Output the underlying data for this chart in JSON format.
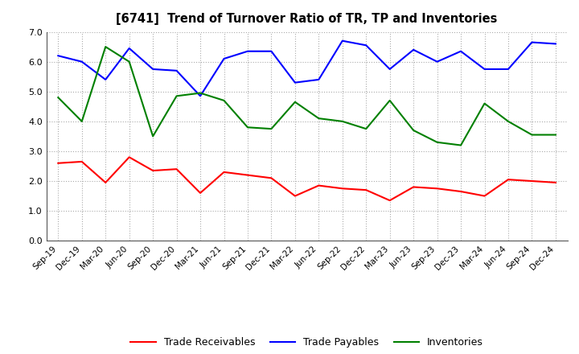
{
  "title": "[6741]  Trend of Turnover Ratio of TR, TP and Inventories",
  "x_labels": [
    "Sep-19",
    "Dec-19",
    "Mar-20",
    "Jun-20",
    "Sep-20",
    "Dec-20",
    "Mar-21",
    "Jun-21",
    "Sep-21",
    "Dec-21",
    "Mar-22",
    "Jun-22",
    "Sep-22",
    "Dec-22",
    "Mar-23",
    "Jun-23",
    "Sep-23",
    "Dec-23",
    "Mar-24",
    "Jun-24",
    "Sep-24",
    "Dec-24"
  ],
  "trade_receivables": [
    2.6,
    2.65,
    1.95,
    2.8,
    2.35,
    2.4,
    1.6,
    2.3,
    2.2,
    2.1,
    1.5,
    1.85,
    1.75,
    1.7,
    1.35,
    1.8,
    1.75,
    1.65,
    1.5,
    2.05,
    2.0,
    1.95
  ],
  "trade_payables": [
    6.2,
    6.0,
    5.4,
    6.45,
    5.75,
    5.7,
    4.85,
    6.1,
    6.35,
    6.35,
    5.3,
    5.4,
    6.7,
    6.55,
    5.75,
    6.4,
    6.0,
    6.35,
    5.75,
    5.75,
    6.65,
    6.6
  ],
  "inventories": [
    4.8,
    4.0,
    6.5,
    6.0,
    3.5,
    4.85,
    4.95,
    4.7,
    3.8,
    3.75,
    4.65,
    4.1,
    4.0,
    3.75,
    4.7,
    3.7,
    3.3,
    3.2,
    4.6,
    4.0,
    3.55,
    3.55
  ],
  "ylim": [
    0.0,
    7.0
  ],
  "yticks": [
    0.0,
    1.0,
    2.0,
    3.0,
    4.0,
    5.0,
    6.0,
    7.0
  ],
  "tr_color": "#ff0000",
  "tp_color": "#0000ff",
  "inv_color": "#008000",
  "background_color": "#ffffff",
  "grid_color": "#aaaaaa",
  "legend_labels": [
    "Trade Receivables",
    "Trade Payables",
    "Inventories"
  ]
}
